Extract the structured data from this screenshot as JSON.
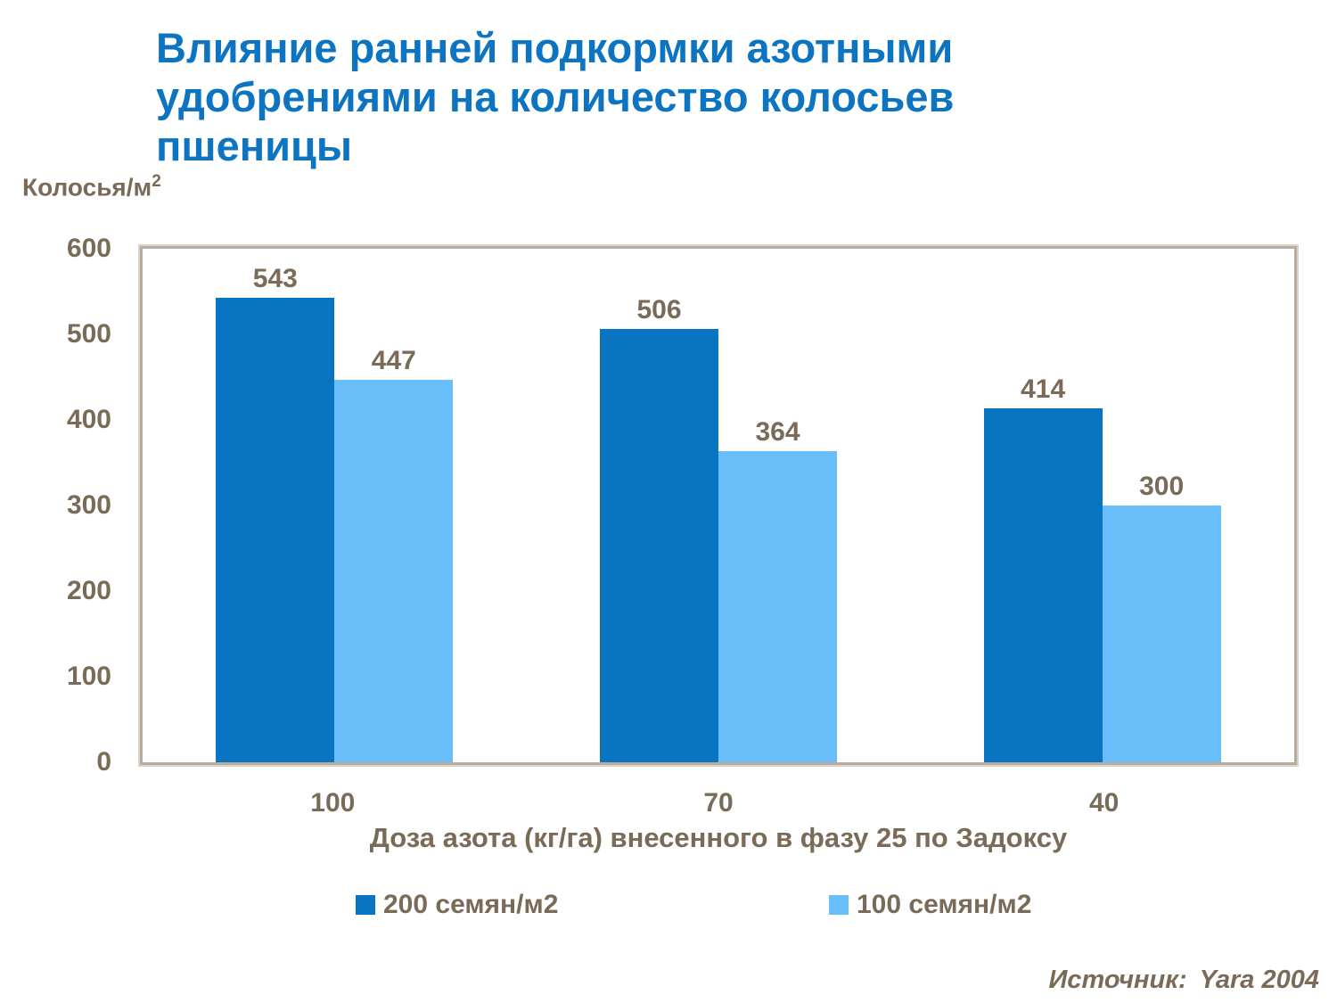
{
  "slide": {
    "title_lines": [
      "Влияние ранней подкормки азотными",
      "удобрениями на количество колосьев",
      "пшеницы"
    ],
    "source": {
      "label": "Источник:",
      "value": "Yara 2004"
    }
  },
  "chart_data": {
    "type": "bar",
    "title": "Влияние ранней подкормки азотными удобрениями на количество колосьев пшеницы",
    "ylabel": "Колосья/м",
    "ylabel_superscript": "2",
    "xlabel": "Доза азота (кг/га) внесенного в фазу 25 по Задоксу",
    "categories": [
      "100",
      "70",
      "40"
    ],
    "series": [
      {
        "name": "200 семян/м2",
        "color": "#0874C2",
        "values": [
          543,
          506,
          414
        ]
      },
      {
        "name": "100 семян/м2",
        "color": "#69BEFA",
        "values": [
          447,
          364,
          300
        ]
      }
    ],
    "ylim": [
      0,
      600
    ],
    "yticks": [
      600,
      500,
      400,
      300,
      200,
      100,
      0
    ],
    "grid": false,
    "legend_position": "bottom",
    "value_labels": true
  },
  "colors": {
    "title": "#0D74C2",
    "text": "#7A6A58",
    "frame_border": "#B9AC9F",
    "frame_highlight": "#DAD3CA",
    "background": "#FFFFFF"
  }
}
